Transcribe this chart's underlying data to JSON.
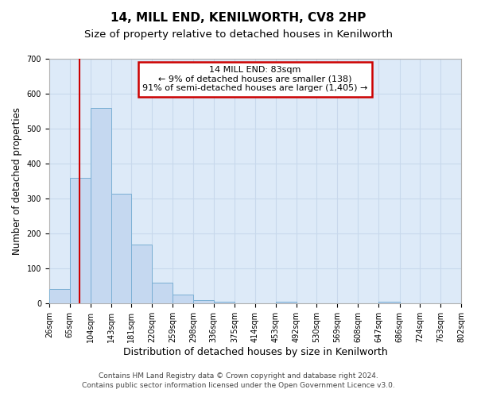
{
  "title": "14, MILL END, KENILWORTH, CV8 2HP",
  "subtitle": "Size of property relative to detached houses in Kenilworth",
  "xlabel": "Distribution of detached houses by size in Kenilworth",
  "ylabel": "Number of detached properties",
  "footer_line1": "Contains HM Land Registry data © Crown copyright and database right 2024.",
  "footer_line2": "Contains public sector information licensed under the Open Government Licence v3.0.",
  "annotation_line1": "14 MILL END: 83sqm",
  "annotation_line2": "← 9% of detached houses are smaller (138)",
  "annotation_line3": "91% of semi-detached houses are larger (1,405) →",
  "vline_x": 83,
  "bin_edges": [
    26,
    65,
    104,
    143,
    181,
    220,
    259,
    298,
    336,
    375,
    414,
    453,
    492,
    530,
    569,
    608,
    647,
    686,
    724,
    763,
    802
  ],
  "bin_counts": [
    42,
    360,
    560,
    315,
    168,
    60,
    25,
    10,
    5,
    0,
    0,
    5,
    0,
    0,
    0,
    0,
    5,
    0,
    0,
    0
  ],
  "bar_color": "#c5d8f0",
  "bar_edge_color": "#7aafd4",
  "vline_color": "#cc0000",
  "annotation_box_edgecolor": "#cc0000",
  "ylim": [
    0,
    700
  ],
  "yticks": [
    0,
    100,
    200,
    300,
    400,
    500,
    600,
    700
  ],
  "grid_color": "#c8d8ec",
  "bg_color": "#ddeaf8",
  "title_fontsize": 11,
  "subtitle_fontsize": 9.5,
  "ylabel_fontsize": 8.5,
  "xlabel_fontsize": 9,
  "tick_fontsize": 7,
  "annotation_fontsize": 8,
  "footer_fontsize": 6.5
}
